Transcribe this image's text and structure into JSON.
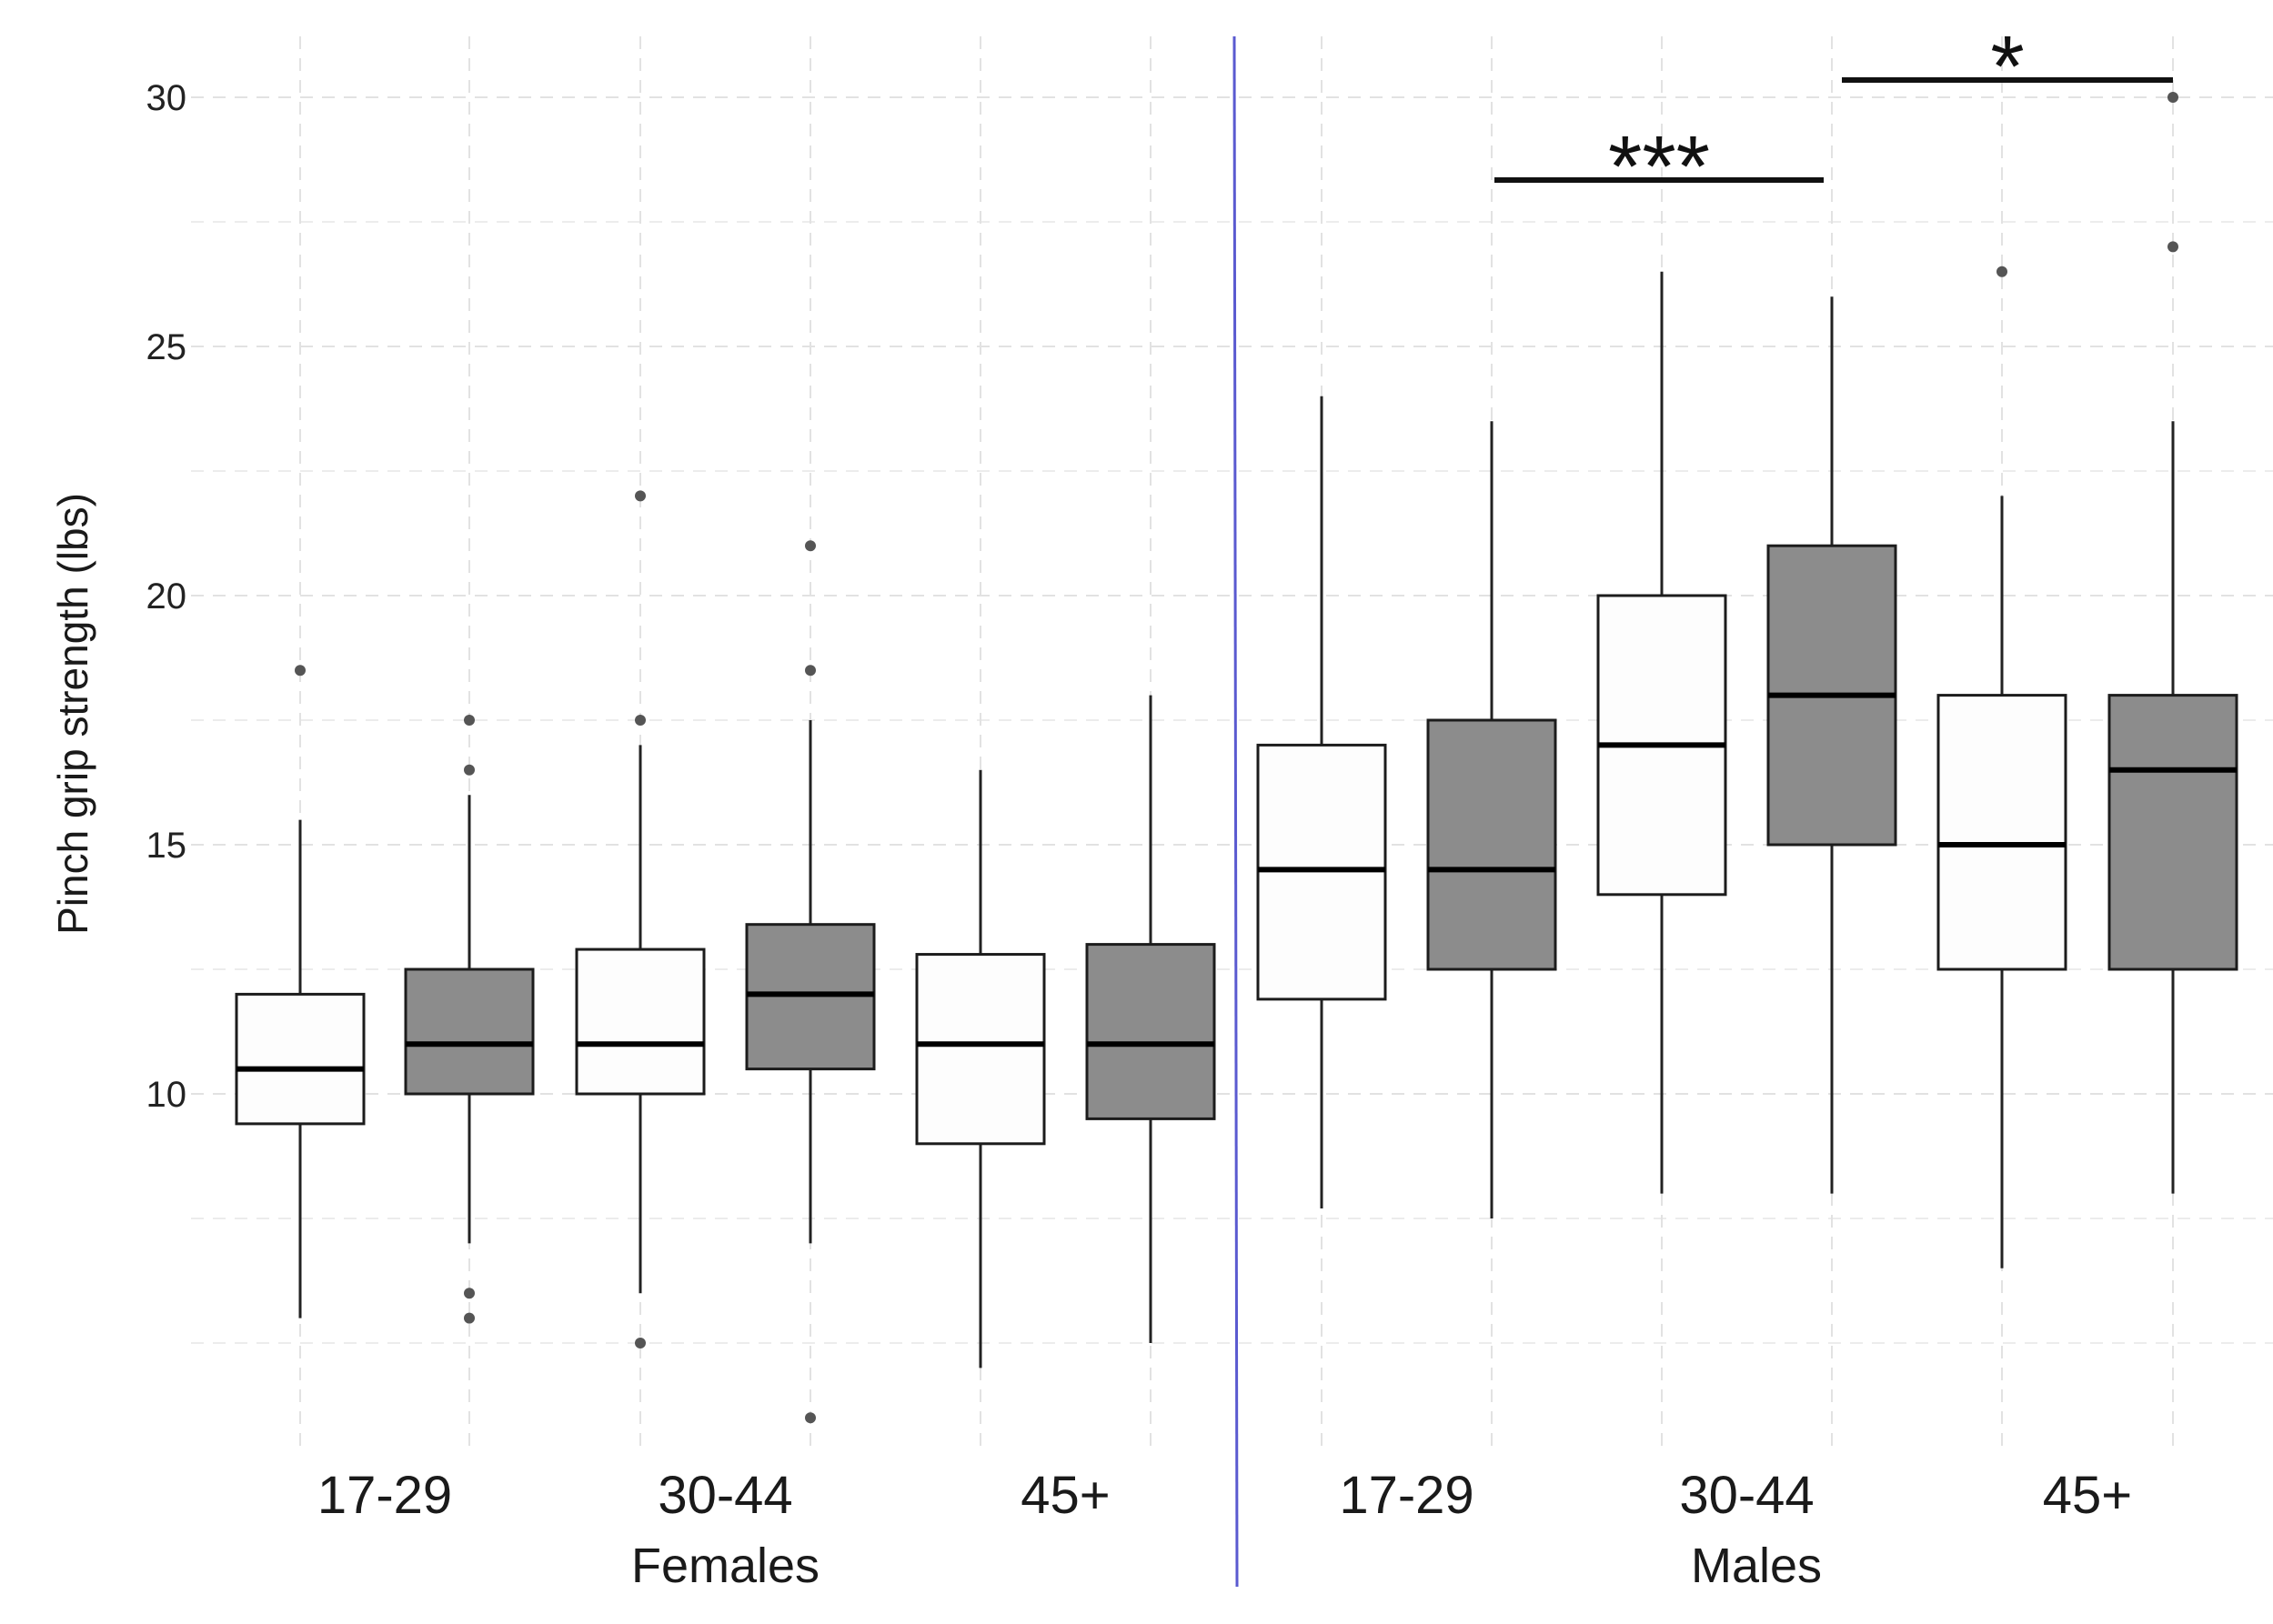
{
  "chart_data": {
    "type": "boxplot",
    "title": "",
    "ylabel": "Pinch grip strength (lbs)",
    "xlabel": "",
    "ylim": [
      2.5,
      31
    ],
    "y_ticks": [
      10,
      15,
      20,
      25,
      30
    ],
    "y_tick_labels": [
      "10",
      "15",
      "20",
      "25",
      "30"
    ],
    "y_minor_gridlines": [
      5,
      7.5,
      12.5,
      17.5,
      22.5,
      27.5
    ],
    "grid": true,
    "fill_colors": {
      "light": "#fdfdfd",
      "dark": "#8c8c8c"
    },
    "divider_color": "#5a5ad0",
    "groups": [
      {
        "name": "Females",
        "age_groups": [
          {
            "label": "17-29",
            "boxes": [
              {
                "shade": "light",
                "whisker_low": 5.5,
                "q1": 9.4,
                "median": 10.5,
                "q3": 12,
                "whisker_high": 15.5,
                "outliers": [
                  18.5
                ]
              },
              {
                "shade": "dark",
                "whisker_low": 7,
                "q1": 10,
                "median": 11,
                "q3": 12.5,
                "whisker_high": 16,
                "outliers": [
                  17.5,
                  16.5,
                  6,
                  5.5
                ]
              }
            ]
          },
          {
            "label": "30-44",
            "boxes": [
              {
                "shade": "light",
                "whisker_low": 6,
                "q1": 10,
                "median": 11,
                "q3": 12.9,
                "whisker_high": 17,
                "outliers": [
                  22,
                  17.5,
                  5
                ]
              },
              {
                "shade": "dark",
                "whisker_low": 7,
                "q1": 10.5,
                "median": 12,
                "q3": 13.4,
                "whisker_high": 17.5,
                "outliers": [
                  21,
                  18.5,
                  3.5
                ]
              }
            ]
          },
          {
            "label": "45+",
            "boxes": [
              {
                "shade": "light",
                "whisker_low": 4.5,
                "q1": 9,
                "median": 11,
                "q3": 12.8,
                "whisker_high": 16.5,
                "outliers": []
              },
              {
                "shade": "dark",
                "whisker_low": 5,
                "q1": 9.5,
                "median": 11,
                "q3": 13,
                "whisker_high": 18,
                "outliers": []
              }
            ]
          }
        ]
      },
      {
        "name": "Males",
        "age_groups": [
          {
            "label": "17-29",
            "boxes": [
              {
                "shade": "light",
                "whisker_low": 7.7,
                "q1": 11.9,
                "median": 14.5,
                "q3": 17,
                "whisker_high": 24,
                "outliers": []
              },
              {
                "shade": "dark",
                "whisker_low": 7.5,
                "q1": 12.5,
                "median": 14.5,
                "q3": 17.5,
                "whisker_high": 23.5,
                "outliers": []
              }
            ]
          },
          {
            "label": "30-44",
            "boxes": [
              {
                "shade": "light",
                "whisker_low": 8,
                "q1": 14,
                "median": 17,
                "q3": 20,
                "whisker_high": 26.5,
                "outliers": []
              },
              {
                "shade": "dark",
                "whisker_low": 8,
                "q1": 15,
                "median": 18,
                "q3": 21,
                "whisker_high": 26,
                "outliers": []
              }
            ]
          },
          {
            "label": "45+",
            "boxes": [
              {
                "shade": "light",
                "whisker_low": 6.5,
                "q1": 12.5,
                "median": 15,
                "q3": 18,
                "whisker_high": 22,
                "outliers": [
                  26.5
                ]
              },
              {
                "shade": "dark",
                "whisker_low": 8,
                "q1": 12.5,
                "median": 16.5,
                "q3": 18,
                "whisker_high": 23.5,
                "outliers": [
                  30,
                  27
                ]
              }
            ]
          }
        ]
      }
    ],
    "annotations": [
      {
        "label": "***",
        "from": "Males 17-29 (dark)",
        "to": "Males 30-44 (dark)",
        "y": 28.3
      },
      {
        "label": "*",
        "from": "Males 30-44 (dark)",
        "to": "Males 45+ (dark)",
        "y": 30.3
      }
    ]
  }
}
